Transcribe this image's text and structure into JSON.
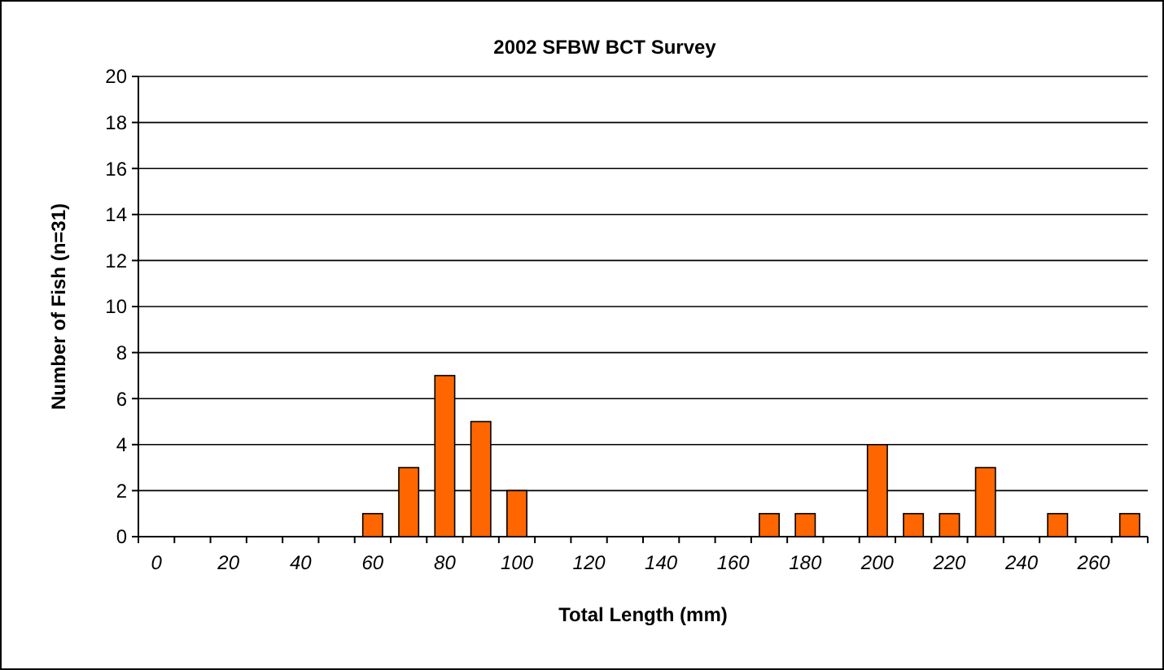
{
  "chart_data": {
    "type": "bar",
    "title": "2002 SFBW BCT Survey",
    "xlabel": "Total Length (mm)",
    "ylabel": "Number of Fish (n=31)",
    "categories": [
      "0",
      null,
      "20",
      null,
      "40",
      null,
      "60",
      null,
      "80",
      null,
      "100",
      null,
      "120",
      null,
      "140",
      null,
      "160",
      null,
      "180",
      null,
      "200",
      null,
      "220",
      null,
      "240",
      null,
      "260",
      null
    ],
    "values": [
      0,
      0,
      0,
      0,
      0,
      0,
      1,
      3,
      7,
      5,
      2,
      0,
      0,
      0,
      0,
      0,
      0,
      1,
      1,
      0,
      4,
      1,
      1,
      3,
      0,
      1,
      0,
      1
    ],
    "color": "#ff6600",
    "ylim": [
      0,
      20
    ],
    "yticks": [
      0,
      2,
      4,
      6,
      8,
      10,
      12,
      14,
      16,
      18,
      20
    ],
    "grid": "y"
  }
}
